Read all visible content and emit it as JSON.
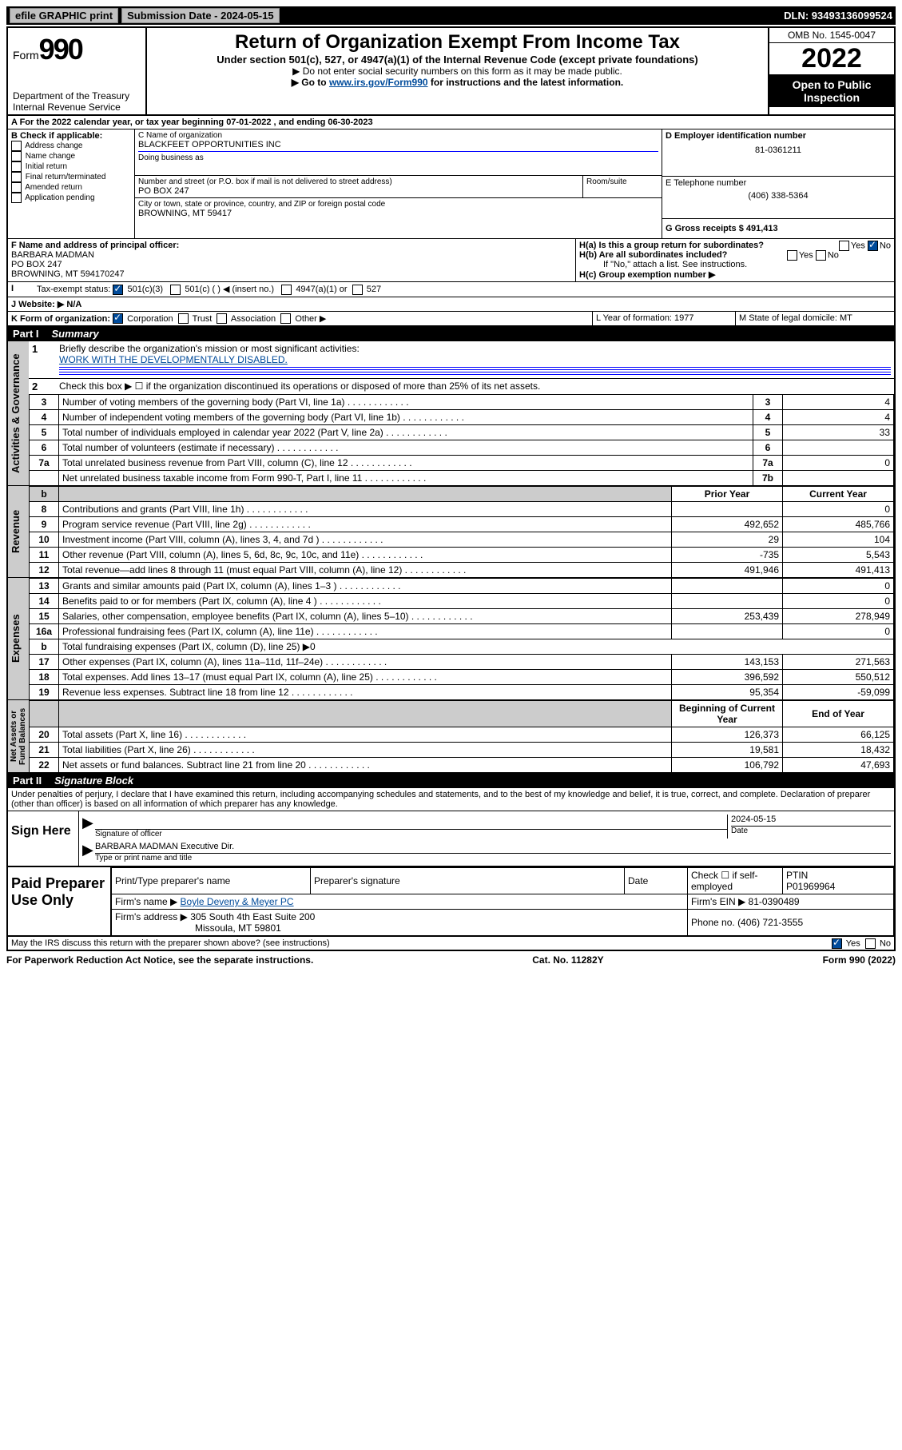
{
  "topbar": {
    "efile_btn": "efile GRAPHIC print",
    "sub_date_label": "Submission Date - 2024-05-15",
    "dln_label": "DLN: 93493136099524"
  },
  "header": {
    "form_label": "Form",
    "form_num": "990",
    "dept": "Department of the Treasury",
    "irs": "Internal Revenue Service",
    "title": "Return of Organization Exempt From Income Tax",
    "sub": "Under section 501(c), 527, or 4947(a)(1) of the Internal Revenue Code (except private foundations)",
    "note1": "▶ Do not enter social security numbers on this form as it may be made public.",
    "note2_pre": "▶ Go to ",
    "note2_link": "www.irs.gov/Form990",
    "note2_post": " for instructions and the latest information.",
    "omb": "OMB No. 1545-0047",
    "year": "2022",
    "open_pub": "Open to Public Inspection"
  },
  "secA": {
    "line": "A For the 2022 calendar year, or tax year beginning 07-01-2022   , and ending 06-30-2023",
    "b_label": "B Check if applicable:",
    "b_opts": [
      "Address change",
      "Name change",
      "Initial return",
      "Final return/terminated",
      "Amended return",
      "Application pending"
    ],
    "c_label": "C Name of organization",
    "c_name": "BLACKFEET OPPORTUNITIES INC",
    "dba": "Doing business as",
    "addr_label": "Number and street (or P.O. box if mail is not delivered to street address)",
    "room": "Room/suite",
    "addr": "PO BOX 247",
    "city_label": "City or town, state or province, country, and ZIP or foreign postal code",
    "city": "BROWNING, MT  59417",
    "d_label": "D Employer identification number",
    "d_val": "81-0361211",
    "e_label": "E Telephone number",
    "e_val": "(406) 338-5364",
    "g_label": "G Gross receipts $ 491,413",
    "f_label": "F  Name and address of principal officer:",
    "f_name": "BARBARA MADMAN",
    "f_addr1": "PO BOX 247",
    "f_addr2": "BROWNING, MT  594170247",
    "ha_label": "H(a)  Is this a group return for subordinates?",
    "hb_label": "H(b)  Are all subordinates included?",
    "h_note": "If \"No,\" attach a list. See instructions.",
    "hc_label": "H(c)  Group exemption number ▶",
    "yes": "Yes",
    "no": "No",
    "i_label": "Tax-exempt status:",
    "i_501c3": "501(c)(3)",
    "i_501c": "501(c) (  ) ◀ (insert no.)",
    "i_4947": "4947(a)(1) or",
    "i_527": "527",
    "j_label": "J Website: ▶",
    "j_val": "N/A",
    "k_label": "K Form of organization:",
    "k_corp": "Corporation",
    "k_trust": "Trust",
    "k_assoc": "Association",
    "k_other": "Other ▶",
    "l_label": "L Year of formation: 1977",
    "m_label": "M State of legal domicile: MT"
  },
  "part1": {
    "hdr": "Part I",
    "title": "Summary",
    "side1": "Activities & Governance",
    "side2": "Revenue",
    "side3": "Expenses",
    "side4": "Net Assets or Fund Balances",
    "l1_label": "Briefly describe the organization's mission or most significant activities:",
    "l1_val": "WORK WITH THE DEVELOPMENTALLY DISABLED.",
    "l2": "Check this box ▶ ☐  if the organization discontinued its operations or disposed of more than 25% of its net assets.",
    "rows_gov": [
      {
        "n": "3",
        "t": "Number of voting members of the governing body (Part VI, line 1a)",
        "b": "3",
        "v": "4"
      },
      {
        "n": "4",
        "t": "Number of independent voting members of the governing body (Part VI, line 1b)",
        "b": "4",
        "v": "4"
      },
      {
        "n": "5",
        "t": "Total number of individuals employed in calendar year 2022 (Part V, line 2a)",
        "b": "5",
        "v": "33"
      },
      {
        "n": "6",
        "t": "Total number of volunteers (estimate if necessary)",
        "b": "6",
        "v": ""
      },
      {
        "n": "7a",
        "t": "Total unrelated business revenue from Part VIII, column (C), line 12",
        "b": "7a",
        "v": "0"
      },
      {
        "n": "",
        "t": "Net unrelated business taxable income from Form 990-T, Part I, line 11",
        "b": "7b",
        "v": ""
      }
    ],
    "col_prior": "Prior Year",
    "col_curr": "Current Year",
    "rows_rev": [
      {
        "n": "8",
        "t": "Contributions and grants (Part VIII, line 1h)",
        "p": "",
        "c": "0"
      },
      {
        "n": "9",
        "t": "Program service revenue (Part VIII, line 2g)",
        "p": "492,652",
        "c": "485,766"
      },
      {
        "n": "10",
        "t": "Investment income (Part VIII, column (A), lines 3, 4, and 7d )",
        "p": "29",
        "c": "104"
      },
      {
        "n": "11",
        "t": "Other revenue (Part VIII, column (A), lines 5, 6d, 8c, 9c, 10c, and 11e)",
        "p": "-735",
        "c": "5,543"
      },
      {
        "n": "12",
        "t": "Total revenue—add lines 8 through 11 (must equal Part VIII, column (A), line 12)",
        "p": "491,946",
        "c": "491,413"
      }
    ],
    "rows_exp": [
      {
        "n": "13",
        "t": "Grants and similar amounts paid (Part IX, column (A), lines 1–3 )",
        "p": "",
        "c": "0"
      },
      {
        "n": "14",
        "t": "Benefits paid to or for members (Part IX, column (A), line 4 )",
        "p": "",
        "c": "0"
      },
      {
        "n": "15",
        "t": "Salaries, other compensation, employee benefits (Part IX, column (A), lines 5–10)",
        "p": "253,439",
        "c": "278,949"
      },
      {
        "n": "16a",
        "t": "Professional fundraising fees (Part IX, column (A), line 11e)",
        "p": "",
        "c": "0"
      },
      {
        "n": "b",
        "t": "Total fundraising expenses (Part IX, column (D), line 25) ▶0",
        "p": "—",
        "c": "—"
      },
      {
        "n": "17",
        "t": "Other expenses (Part IX, column (A), lines 11a–11d, 11f–24e)",
        "p": "143,153",
        "c": "271,563"
      },
      {
        "n": "18",
        "t": "Total expenses. Add lines 13–17 (must equal Part IX, column (A), line 25)",
        "p": "396,592",
        "c": "550,512"
      },
      {
        "n": "19",
        "t": "Revenue less expenses. Subtract line 18 from line 12",
        "p": "95,354",
        "c": "-59,099"
      }
    ],
    "col_beg": "Beginning of Current Year",
    "col_end": "End of Year",
    "rows_net": [
      {
        "n": "20",
        "t": "Total assets (Part X, line 16)",
        "p": "126,373",
        "c": "66,125"
      },
      {
        "n": "21",
        "t": "Total liabilities (Part X, line 26)",
        "p": "19,581",
        "c": "18,432"
      },
      {
        "n": "22",
        "t": "Net assets or fund balances. Subtract line 21 from line 20",
        "p": "106,792",
        "c": "47,693"
      }
    ]
  },
  "part2": {
    "hdr": "Part II",
    "title": "Signature Block",
    "decl": "Under penalties of perjury, I declare that I have examined this return, including accompanying schedules and statements, and to the best of my knowledge and belief, it is true, correct, and complete. Declaration of preparer (other than officer) is based on all information of which preparer has any knowledge.",
    "sign_here": "Sign Here",
    "sig_officer": "Signature of officer",
    "date": "Date",
    "date_val": "2024-05-15",
    "name_title": "BARBARA MADMAN  Executive Dir.",
    "name_label": "Type or print name and title",
    "paid_prep": "Paid Preparer Use Only",
    "prep_name_h": "Print/Type preparer's name",
    "prep_sig_h": "Preparer's signature",
    "date_h": "Date",
    "check_self": "Check ☐ if self-employed",
    "ptin_h": "PTIN",
    "ptin_v": "P01969964",
    "firm_name_l": "Firm's name    ▶",
    "firm_name_v": "Boyle Deveny & Meyer PC",
    "firm_ein_l": "Firm's EIN ▶",
    "firm_ein_v": "81-0390489",
    "firm_addr_l": "Firm's address ▶",
    "firm_addr_v1": "305 South 4th East Suite 200",
    "firm_addr_v2": "Missoula, MT  59801",
    "phone_l": "Phone no.",
    "phone_v": "(406) 721-3555",
    "discuss": "May the IRS discuss this return with the preparer shown above? (see instructions)"
  },
  "footer": {
    "left": "For Paperwork Reduction Act Notice, see the separate instructions.",
    "mid": "Cat. No. 11282Y",
    "right": "Form 990 (2022)"
  }
}
